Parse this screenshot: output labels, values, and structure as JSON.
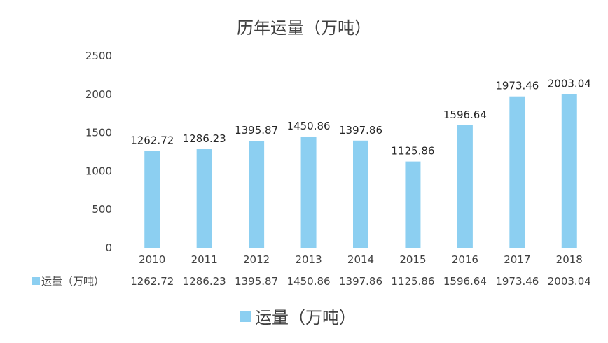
{
  "chart_data": {
    "type": "bar",
    "title": "历年运量（万吨）",
    "categories": [
      "2010",
      "2011",
      "2012",
      "2013",
      "2014",
      "2015",
      "2016",
      "2017",
      "2018"
    ],
    "series": [
      {
        "name": "运量（万吨）",
        "values": [
          1262.72,
          1286.23,
          1395.87,
          1450.86,
          1397.86,
          1125.86,
          1596.64,
          1973.46,
          2003.04
        ],
        "labels": [
          "1262.72",
          "1286.23",
          "1395.87",
          "1450.86",
          "1397.86",
          "1125.86",
          "1596.64",
          "1973.46",
          "2003.04"
        ]
      }
    ],
    "ylim": [
      0,
      2500
    ],
    "yticks": [
      0,
      500,
      1000,
      1500,
      2000,
      2500
    ],
    "xlabel": "",
    "ylabel": "",
    "grid": false,
    "legend": "bottom",
    "data_table": true,
    "colors": {
      "bar": "#8CCFF1",
      "text": "#404040"
    }
  }
}
